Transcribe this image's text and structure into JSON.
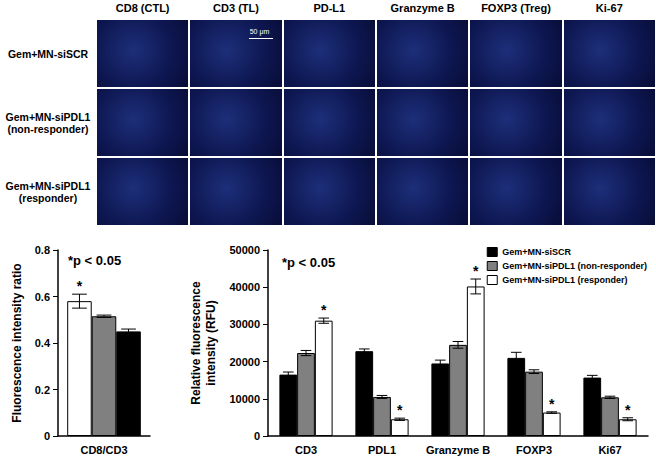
{
  "panels": {
    "columns": [
      "CD8 (CTL)",
      "CD3 (TL)",
      "PD-L1",
      "Granzyme B",
      "FOXP3 (Treg)",
      "Ki-67"
    ],
    "rows": [
      [
        "Gem+MN-siSCR"
      ],
      [
        "Gem+MN-siPDL1",
        "(non-responder)"
      ],
      [
        "Gem+MN-siPDL1",
        "(responder)"
      ]
    ],
    "scale_bar": "50 μm"
  },
  "chart_data": [
    {
      "type": "bar",
      "ylabel": "Fluorescence intensity ratio",
      "annotation": "*p < 0.05",
      "categories": [
        "CD8/CD3"
      ],
      "series": [
        {
          "color": "#ffffff",
          "values": [
            0.58
          ],
          "errors": [
            0.03
          ],
          "significance": [
            "*"
          ]
        },
        {
          "color": "#808080",
          "values": [
            0.515
          ],
          "errors": [
            0.005
          ]
        },
        {
          "color": "#000000",
          "values": [
            0.45
          ],
          "errors": [
            0.01
          ]
        }
      ],
      "ylim": [
        0,
        0.8
      ],
      "yticks": [
        0,
        0.2,
        0.4,
        0.6,
        0.8
      ],
      "grid": false
    },
    {
      "type": "bar",
      "ylabel": "Relative fluorescence\nintensity (RFU)",
      "annotation": "*p < 0.05",
      "categories": [
        "CD3",
        "PDL1",
        "Granzyme B",
        "FOXP3",
        "Ki67"
      ],
      "series": [
        {
          "name": "Gem+MN-siSCR",
          "color": "#000000",
          "values": [
            16500,
            22800,
            19500,
            21000,
            15700
          ],
          "errors": [
            700,
            600,
            900,
            1500,
            600
          ]
        },
        {
          "name": "Gem+MN-siPDL1 (non-responder)",
          "color": "#808080",
          "values": [
            22300,
            10500,
            24500,
            17300,
            10400
          ],
          "errors": [
            700,
            400,
            900,
            500,
            300
          ]
        },
        {
          "name": "Gem+MN-siPDL1 (responder)",
          "color": "#ffffff",
          "values": [
            31000,
            4500,
            40200,
            6300,
            4500
          ],
          "errors": [
            700,
            300,
            2000,
            200,
            400
          ],
          "significance": [
            "*",
            "*",
            "*",
            "*",
            "*"
          ]
        }
      ],
      "ylim": [
        0,
        50000
      ],
      "yticks": [
        0,
        10000,
        20000,
        30000,
        40000,
        50000
      ],
      "grid": false,
      "legend": "upper right"
    }
  ]
}
